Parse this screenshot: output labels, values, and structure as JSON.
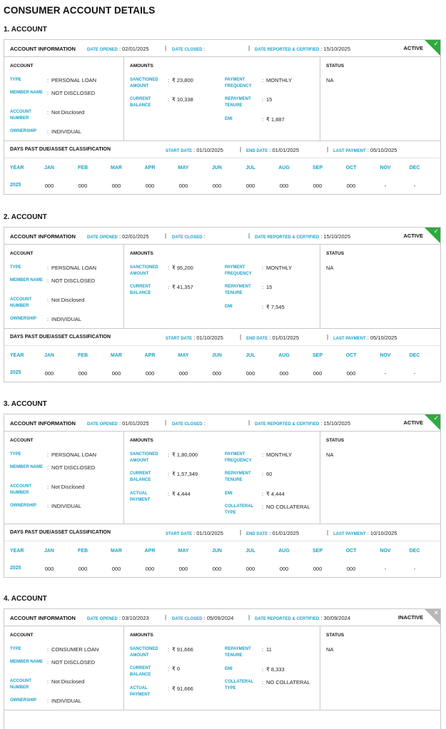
{
  "page_title": "CONSUMER ACCOUNT DETAILS",
  "labels": {
    "account_information": "ACCOUNT INFORMATION",
    "date_opened": "DATE OPENED",
    "date_closed": "DATE CLOSED",
    "date_reported": "DATE REPORTED & CERTIFIED",
    "account": "ACCOUNT",
    "amounts": "AMOUNTS",
    "status": "STATUS",
    "type": "TYPE",
    "member_name": "MEMBER NAME",
    "account_number": "ACCOUNT NUMBER",
    "ownership": "OWNERSHIP",
    "sanctioned_amount": "SANCTIONED AMOUNT",
    "current_balance": "CURRENT BALANCE",
    "actual_payment": "ACTUAL PAYMENT",
    "payment_frequency": "PAYMENT FREQUENCY",
    "repayment_tenure": "REPAYMENT TENURE",
    "emi": "EMI",
    "collateral_type": "COLLATERAL TYPE",
    "dpd_title": "DAYS PAST DUE/ASSET CLASSIFICATION",
    "start_date": "START DATE",
    "end_date": "END DATE",
    "last_payment": "LAST PAYMENT",
    "year": "YEAR",
    "months": [
      "JAN",
      "FEB",
      "MAR",
      "APR",
      "MAY",
      "JUN",
      "JUL",
      "AUG",
      "SEP",
      "OCT",
      "NOV",
      "DEC"
    ]
  },
  "colors": {
    "accent": "#1aa3c9",
    "active": "#2eaa3f",
    "inactive": "#b7b7b7"
  },
  "accounts": [
    {
      "title": "1. ACCOUNT",
      "date_opened": "02/01/2025",
      "date_closed": "",
      "date_reported": "15/10/2025",
      "status_label": "ACTIVE",
      "type": "PERSONAL LOAN",
      "member_name": "NOT DISCLOSED",
      "account_number": "Not Disclosed",
      "ownership": "INDIVIDUAL",
      "sanctioned_amount": "₹ 23,800",
      "current_balance": "₹ 10,338",
      "payment_frequency": "MONTHLY",
      "repayment_tenure": "15",
      "emi": "₹ 1,887",
      "status": "NA",
      "start_date": "01/10/2025",
      "end_date": "01/01/2025",
      "last_payment": "05/10/2025",
      "year": "2025",
      "dpd": [
        "000",
        "000",
        "000",
        "000",
        "000",
        "000",
        "000",
        "000",
        "000",
        "000",
        "-",
        "-"
      ]
    },
    {
      "title": "2. ACCOUNT",
      "date_opened": "02/01/2025",
      "date_closed": "",
      "date_reported": "15/10/2025",
      "status_label": "ACTIVE",
      "type": "PERSONAL LOAN",
      "member_name": "NOT DISCLOSED",
      "account_number": "Not Disclosed",
      "ownership": "INDIVIDUAL",
      "sanctioned_amount": "₹ 95,200",
      "current_balance": "₹ 41,357",
      "payment_frequency": "MONTHLY",
      "repayment_tenure": "15",
      "emi": "₹ 7,545",
      "status": "NA",
      "start_date": "01/10/2025",
      "end_date": "01/01/2025",
      "last_payment": "05/10/2025",
      "year": "2025",
      "dpd": [
        "000",
        "000",
        "000",
        "000",
        "000",
        "000",
        "000",
        "000",
        "000",
        "000",
        "-",
        "-"
      ]
    },
    {
      "title": "3. ACCOUNT",
      "date_opened": "01/01/2025",
      "date_closed": "",
      "date_reported": "15/10/2025",
      "status_label": "ACTIVE",
      "type": "PERSONAL LOAN",
      "member_name": "NOT DISCLOSED",
      "account_number": "Not Disclosed",
      "ownership": "INDIVIDUAL",
      "sanctioned_amount": "₹ 1,80,000",
      "current_balance": "₹ 1,57,349",
      "actual_payment": "₹ 4,444",
      "payment_frequency": "MONTHLY",
      "repayment_tenure": "60",
      "emi": "₹ 4,444",
      "collateral_type": "NO COLLATERAL",
      "status": "NA",
      "start_date": "01/10/2025",
      "end_date": "01/01/2025",
      "last_payment": "10/10/2025",
      "year": "2025",
      "dpd": [
        "000",
        "000",
        "000",
        "000",
        "000",
        "000",
        "000",
        "000",
        "000",
        "000",
        "-",
        "-"
      ]
    },
    {
      "title": "4. ACCOUNT",
      "date_opened": "03/10/2023",
      "date_closed": "05/09/2024",
      "date_reported": "30/09/2024",
      "status_label": "INACTIVE",
      "type": "CONSUMER LOAN",
      "member_name": "NOT DISCLOSED",
      "account_number": "Not Disclosed",
      "ownership": "INDIVIDUAL",
      "sanctioned_amount": "₹ 91,666",
      "current_balance": "₹ 0",
      "actual_payment": "₹ 91,666",
      "repayment_tenure": "11",
      "emi": "₹ 8,333",
      "collateral_type": "NO COLLATERAL",
      "status": "NA"
    }
  ]
}
